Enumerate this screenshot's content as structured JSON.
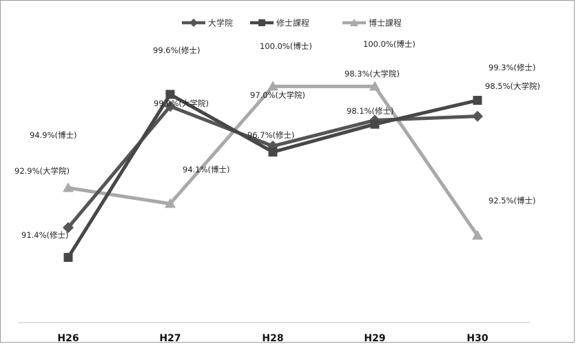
{
  "chart_data": {
    "type": "line",
    "categories": [
      "H26",
      "H27",
      "H28",
      "H29",
      "H30"
    ],
    "series": [
      {
        "name": "大学院",
        "values": [
          92.9,
          99.0,
          97.0,
          98.3,
          98.5
        ],
        "labels": [
          "92.9%(大学院)",
          "99.0%(大学院)",
          "97.0%(大学院)",
          "98.3%(大学院)",
          "98.5%(大学院)"
        ],
        "color": "#555555",
        "marker": "diamond"
      },
      {
        "name": "修士課程",
        "values": [
          91.4,
          99.6,
          96.7,
          98.1,
          99.3
        ],
        "labels": [
          "91.4%(修士)",
          "99.6%(修士)",
          "96.7%(修士)",
          "98.1%(修士)",
          "99.3%(修士)"
        ],
        "color": "#474747",
        "marker": "square"
      },
      {
        "name": "博士課程",
        "values": [
          94.9,
          94.1,
          100.0,
          100.0,
          92.5
        ],
        "labels": [
          "94.9%(博士)",
          "94.1%(博士)",
          "100.0%(博士)",
          "100.0%(博士)",
          "92.5%(博士)"
        ],
        "color": "#a9a9a9",
        "marker": "triangle"
      }
    ],
    "ylim": [
      85.9,
      101.4
    ],
    "grid": false,
    "legend": "top-center"
  }
}
